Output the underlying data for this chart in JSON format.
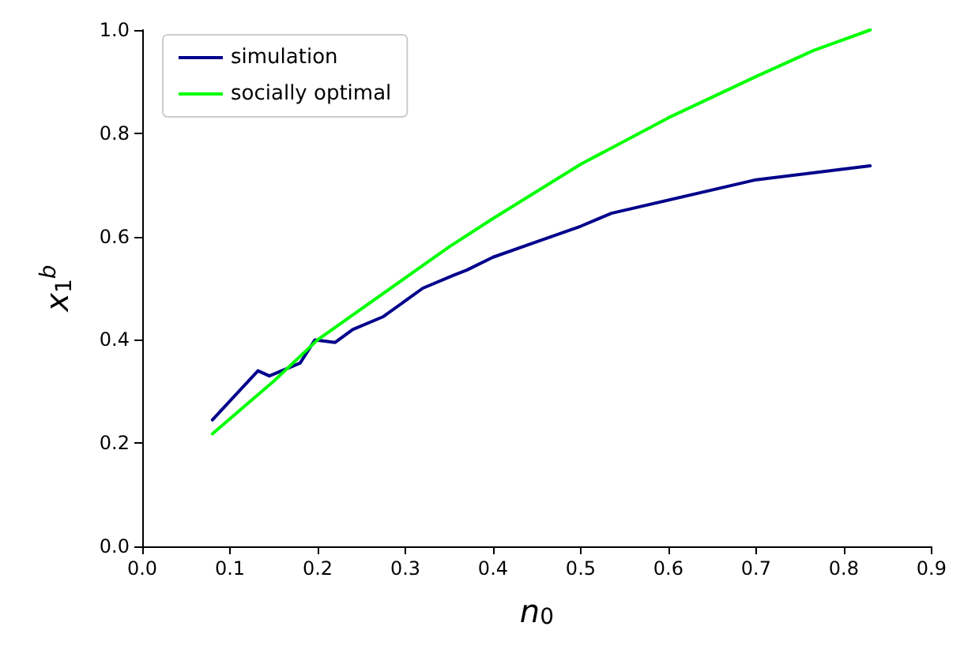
{
  "chart_data": {
    "type": "line",
    "xlabel": "n$_{0}$",
    "ylabel": "x$_{1}$$^{b}$",
    "xlim": [
      0,
      0.9
    ],
    "ylim": [
      0,
      1
    ],
    "xticks": [
      {
        "value": 0,
        "label": "0.0"
      },
      0.1,
      0.2,
      0.3,
      0.4,
      0.5,
      0.6,
      0.7,
      0.8,
      0.9
    ],
    "yticks": [
      {
        "value": 0,
        "label": "0.0"
      },
      0.2,
      0.4,
      0.6,
      0.8,
      {
        "value": 1,
        "label": "1.0"
      }
    ],
    "grid": false,
    "legend": "top left",
    "marker": "none",
    "line_style": "solid",
    "series": [
      {
        "name": "simulation",
        "color": "#00008b",
        "x": [
          0.08,
          0.132,
          0.145,
          0.18,
          0.197,
          0.22,
          0.24,
          0.275,
          0.32,
          0.355,
          0.37,
          0.4,
          0.45,
          0.5,
          0.535,
          0.7,
          0.83
        ],
        "values": [
          0.245,
          0.34,
          0.33,
          0.355,
          0.4,
          0.395,
          0.42,
          0.445,
          0.5,
          0.525,
          0.535,
          0.56,
          0.59,
          0.62,
          0.645,
          0.71,
          0.737
        ]
      },
      {
        "name": "socially optimal",
        "color": "#00ff00",
        "x": [
          0.08,
          0.15,
          0.2,
          0.25,
          0.3,
          0.35,
          0.4,
          0.5,
          0.6,
          0.7,
          0.765,
          0.83
        ],
        "values": [
          0.218,
          0.32,
          0.4,
          0.46,
          0.52,
          0.58,
          0.635,
          0.74,
          0.83,
          0.91,
          0.96,
          1.0
        ]
      }
    ]
  }
}
